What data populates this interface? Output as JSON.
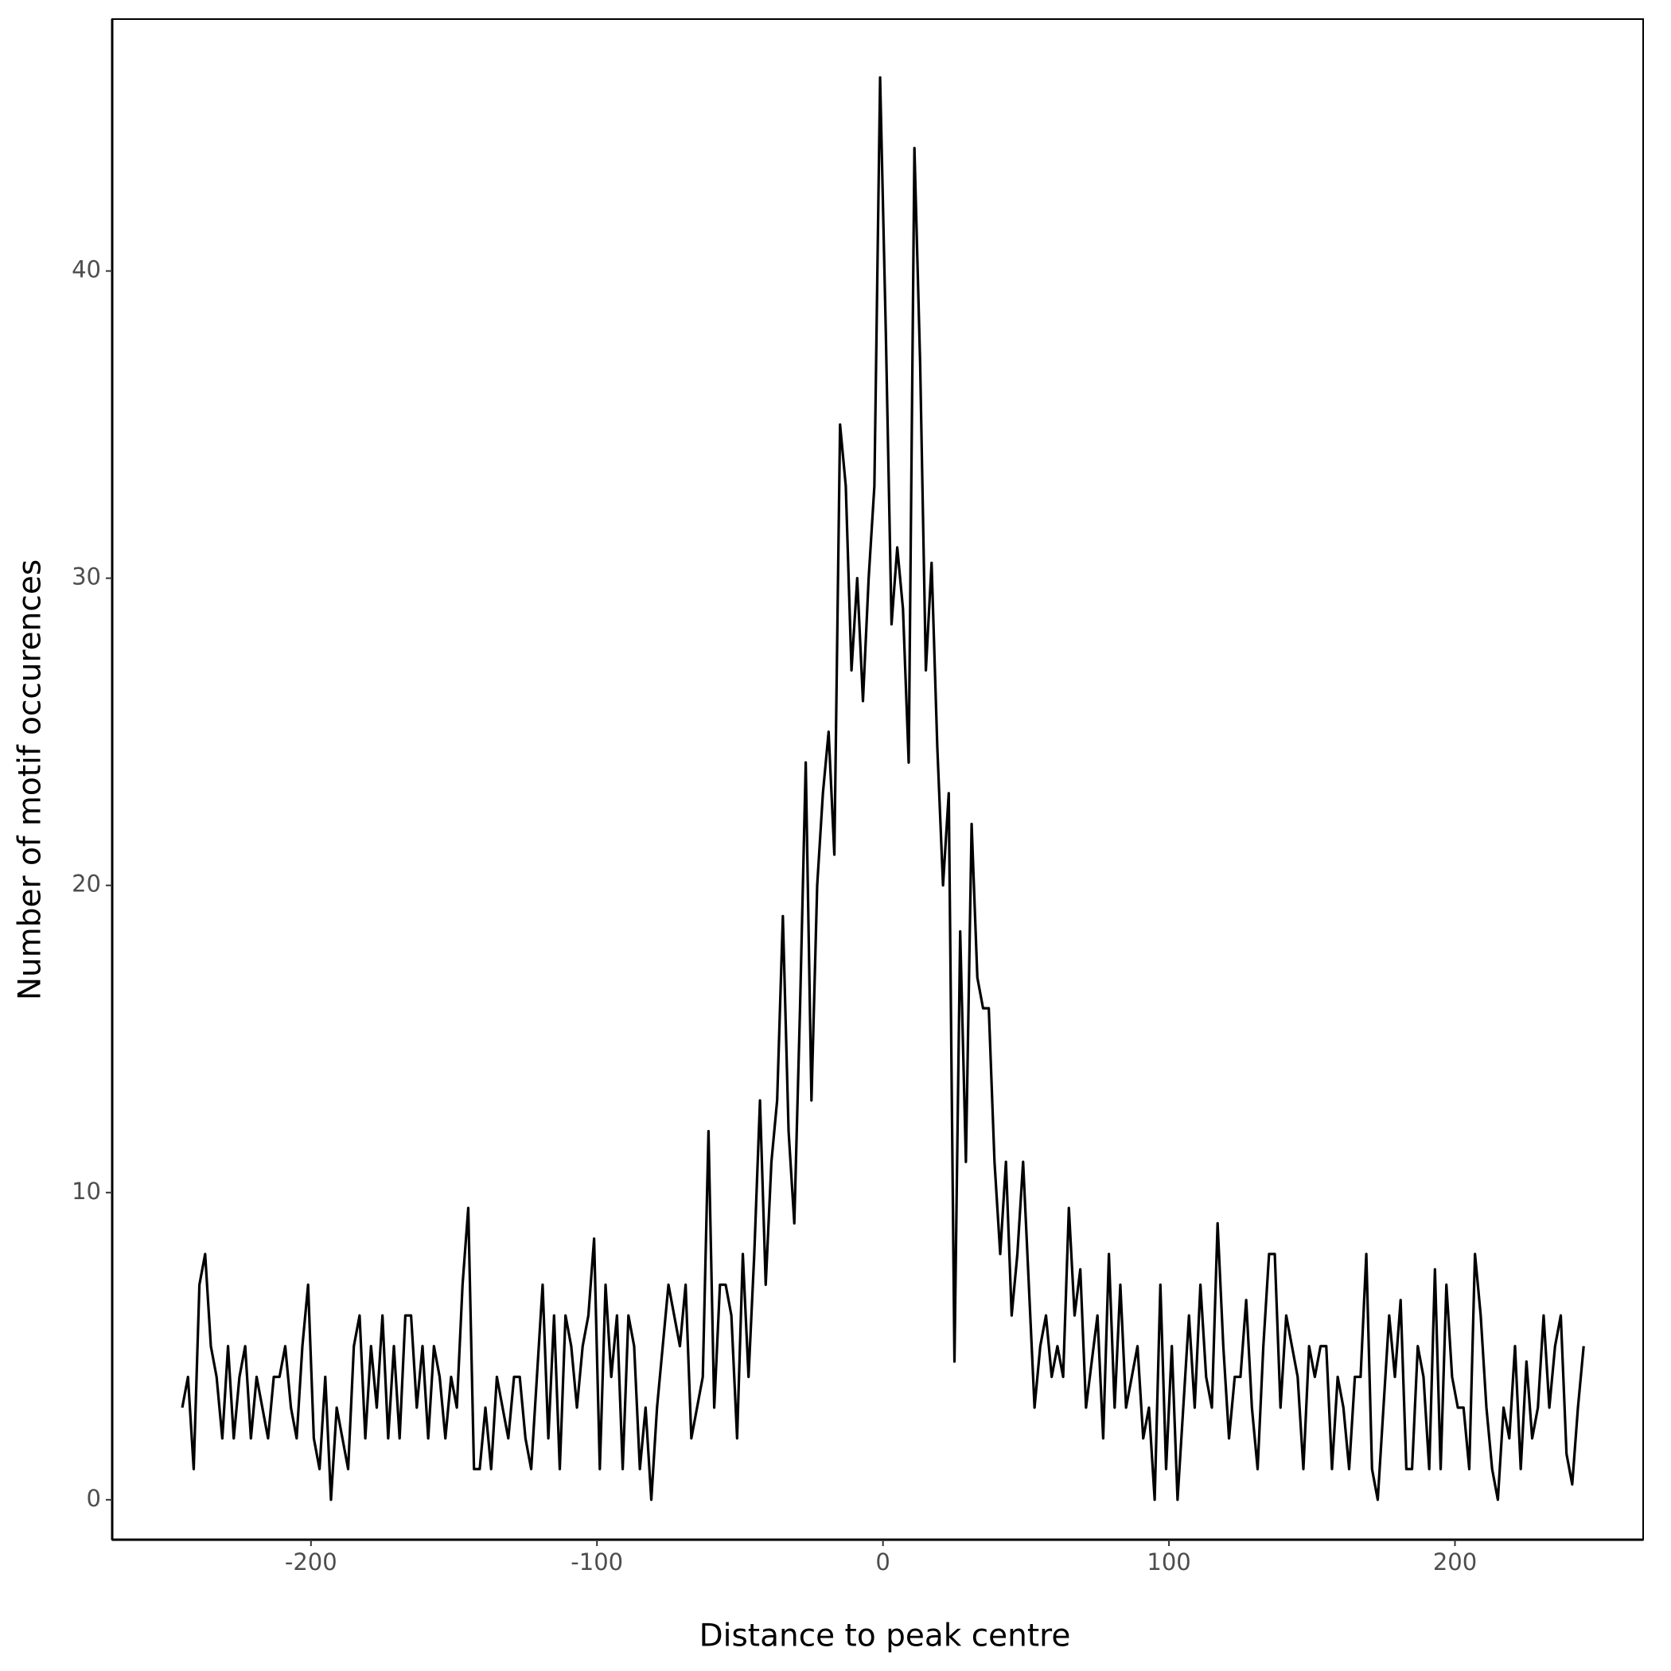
{
  "chart_data": {
    "type": "line",
    "x_label": "Distance to peak centre",
    "y_label": "Number of motif occurences",
    "x": [
      -245,
      -243,
      -241,
      -239,
      -237,
      -235,
      -233,
      -231,
      -229,
      -227,
      -225,
      -223,
      -221,
      -219,
      -217,
      -215,
      -213,
      -211,
      -209,
      -207,
      -205,
      -203,
      -201,
      -199,
      -197,
      -195,
      -193,
      -191,
      -189,
      -187,
      -185,
      -183,
      -181,
      -179,
      -177,
      -175,
      -173,
      -171,
      -169,
      -167,
      -165,
      -163,
      -161,
      -159,
      -157,
      -155,
      -153,
      -151,
      -149,
      -147,
      -145,
      -143,
      -141,
      -139,
      -137,
      -135,
      -133,
      -131,
      -129,
      -127,
      -125,
      -123,
      -121,
      -119,
      -117,
      -115,
      -113,
      -111,
      -109,
      -107,
      -105,
      -103,
      -101,
      -99,
      -97,
      -95,
      -93,
      -91,
      -89,
      -87,
      -85,
      -83,
      -81,
      -79,
      -77,
      -75,
      -73,
      -71,
      -69,
      -67,
      -65,
      -63,
      -61,
      -59,
      -57,
      -55,
      -53,
      -51,
      -49,
      -47,
      -45,
      -43,
      -41,
      -39,
      -37,
      -35,
      -33,
      -31,
      -29,
      -27,
      -25,
      -23,
      -21,
      -19,
      -17,
      -15,
      -13,
      -11,
      -9,
      -7,
      -5,
      -3,
      -1,
      1,
      3,
      5,
      7,
      9,
      11,
      13,
      15,
      17,
      19,
      21,
      23,
      25,
      27,
      29,
      31,
      33,
      35,
      37,
      39,
      41,
      43,
      45,
      47,
      49,
      51,
      53,
      55,
      57,
      59,
      61,
      63,
      65,
      67,
      69,
      71,
      73,
      75,
      77,
      79,
      81,
      83,
      85,
      87,
      89,
      91,
      93,
      95,
      97,
      99,
      101,
      103,
      105,
      107,
      109,
      111,
      113,
      115,
      117,
      119,
      121,
      123,
      125,
      127,
      129,
      131,
      133,
      135,
      137,
      139,
      141,
      143,
      145,
      147,
      149,
      151,
      153,
      155,
      157,
      159,
      161,
      163,
      165,
      167,
      169,
      171,
      173,
      175,
      177,
      179,
      181,
      183,
      185,
      187,
      189,
      191,
      193,
      195,
      197,
      199,
      201,
      203,
      205,
      207,
      209,
      211,
      213,
      215,
      217,
      219,
      221,
      223,
      225,
      227,
      229,
      231,
      233,
      235,
      237,
      239,
      241,
      243,
      245
    ],
    "series": [
      {
        "name": "motif",
        "color": "#000000",
        "values": [
          3,
          4,
          1,
          7,
          8,
          5,
          4,
          2,
          5,
          2,
          4,
          5,
          2,
          4,
          3,
          2,
          4,
          4,
          5,
          3,
          2,
          5,
          7,
          2,
          1,
          4,
          0,
          3,
          2,
          1,
          5,
          6,
          2,
          5,
          3,
          6,
          2,
          5,
          2,
          6,
          6,
          3,
          5,
          2,
          5,
          4,
          2,
          4,
          3,
          7,
          9.5,
          1,
          1,
          3,
          1,
          4,
          3,
          2,
          4,
          4,
          2,
          1,
          4,
          7,
          2,
          6,
          1,
          6,
          5,
          3,
          5,
          6,
          8.5,
          1,
          7,
          4,
          6,
          1,
          6,
          5,
          1,
          3,
          0,
          3,
          5,
          7,
          6,
          5,
          7,
          2,
          3,
          4,
          12,
          3,
          7,
          7,
          6,
          2,
          8,
          4,
          8,
          13,
          7,
          11,
          13,
          19,
          12,
          9,
          16,
          24,
          13,
          20,
          23,
          25,
          21,
          35,
          33,
          27,
          30,
          26,
          30,
          33,
          46.3,
          38,
          28.5,
          31,
          29,
          24,
          44,
          37,
          27,
          30.5,
          24.5,
          20,
          23,
          4.5,
          18.5,
          11,
          22,
          17,
          16,
          16,
          11,
          8,
          11,
          6,
          8,
          11,
          7,
          3,
          5,
          6,
          4,
          5,
          4,
          9.5,
          6,
          7.5,
          3,
          4.5,
          6,
          2,
          8,
          3,
          7,
          3,
          4,
          5,
          2,
          3,
          0,
          7,
          1,
          5,
          0,
          3,
          6,
          3,
          7,
          4,
          3,
          9,
          5,
          2,
          4,
          4,
          6.5,
          3,
          1,
          5,
          8,
          8,
          3,
          6,
          5,
          4,
          1,
          5,
          4,
          5,
          5,
          1,
          4,
          3,
          1,
          4,
          4,
          8,
          1,
          0,
          3,
          6,
          4,
          6.5,
          1,
          1,
          5,
          4,
          1,
          7.5,
          1,
          7,
          4,
          3,
          3,
          1,
          8,
          6,
          3,
          1,
          0,
          3,
          2,
          5,
          1,
          4.5,
          2,
          3,
          6,
          3,
          5,
          6,
          1.5,
          0.5,
          3,
          5
        ]
      }
    ],
    "xlim": [
      -269.5,
      265.8
    ],
    "ylim": [
      -1.3,
      48.2
    ],
    "xticks": [
      -200,
      -100,
      0,
      100,
      200
    ],
    "yticks": [
      0,
      10,
      20,
      30,
      40
    ]
  }
}
